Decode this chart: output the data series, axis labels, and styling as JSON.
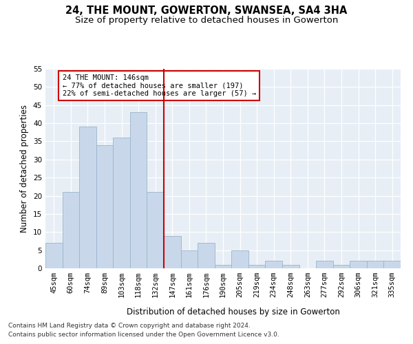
{
  "title": "24, THE MOUNT, GOWERTON, SWANSEA, SA4 3HA",
  "subtitle": "Size of property relative to detached houses in Gowerton",
  "xlabel": "Distribution of detached houses by size in Gowerton",
  "ylabel": "Number of detached properties",
  "categories": [
    "45sqm",
    "60sqm",
    "74sqm",
    "89sqm",
    "103sqm",
    "118sqm",
    "132sqm",
    "147sqm",
    "161sqm",
    "176sqm",
    "190sqm",
    "205sqm",
    "219sqm",
    "234sqm",
    "248sqm",
    "263sqm",
    "277sqm",
    "292sqm",
    "306sqm",
    "321sqm",
    "335sqm"
  ],
  "values": [
    7,
    21,
    39,
    34,
    36,
    43,
    21,
    9,
    5,
    7,
    1,
    5,
    1,
    2,
    1,
    0,
    2,
    1,
    2,
    2,
    2
  ],
  "bar_color": "#c8d8ea",
  "bar_edge_color": "#9ab4cc",
  "ylim": [
    0,
    55
  ],
  "yticks": [
    0,
    5,
    10,
    15,
    20,
    25,
    30,
    35,
    40,
    45,
    50,
    55
  ],
  "vline_x": 6.5,
  "vline_color": "#cc0000",
  "annotation_title": "24 THE MOUNT: 146sqm",
  "annotation_line1": "← 77% of detached houses are smaller (197)",
  "annotation_line2": "22% of semi-detached houses are larger (57) →",
  "annotation_box_color": "#ffffff",
  "annotation_box_edge": "#cc0000",
  "footer1": "Contains HM Land Registry data © Crown copyright and database right 2024.",
  "footer2": "Contains public sector information licensed under the Open Government Licence v3.0.",
  "plot_bg_color": "#e8eef5",
  "title_fontsize": 10.5,
  "subtitle_fontsize": 9.5,
  "axis_label_fontsize": 8.5,
  "tick_fontsize": 7.5,
  "footer_fontsize": 6.5,
  "annotation_fontsize": 7.5
}
